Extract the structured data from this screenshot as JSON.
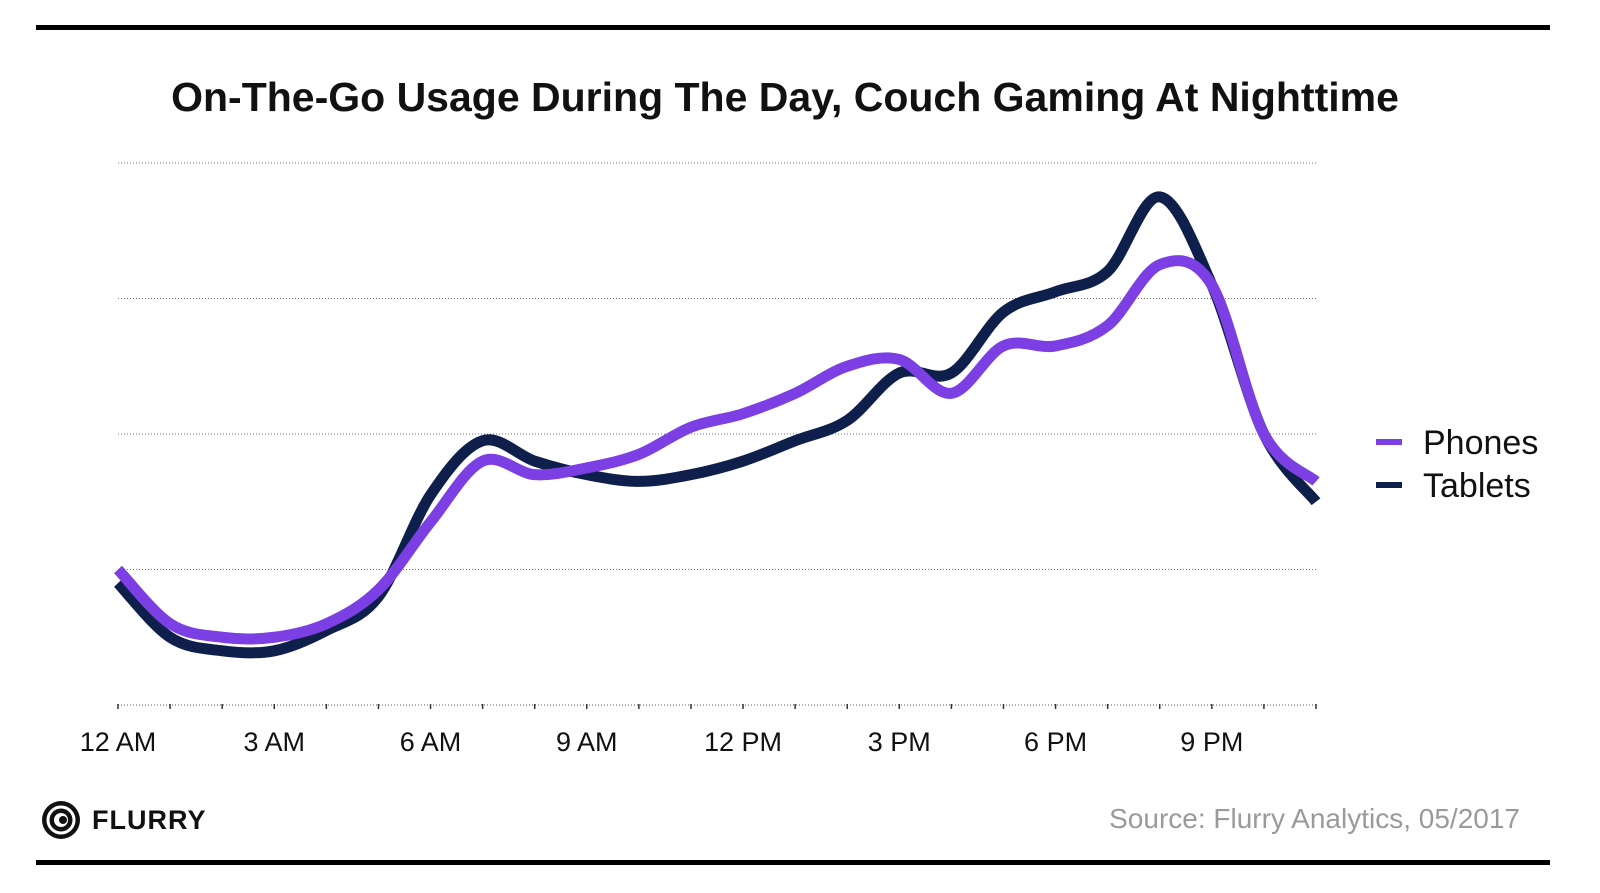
{
  "chart_data": {
    "type": "line",
    "title": "On-The-Go Usage During The Day, Couch Gaming At Nighttime",
    "xlabel": "",
    "ylabel": "",
    "x_tick_labels": [
      "12 AM",
      "3 AM",
      "6 AM",
      "9 AM",
      "12 PM",
      "3 PM",
      "6 PM",
      "9 PM"
    ],
    "x": [
      0,
      1,
      2,
      3,
      4,
      5,
      6,
      7,
      8,
      9,
      10,
      11,
      12,
      13,
      14,
      15,
      16,
      17,
      18,
      19,
      20,
      21,
      22,
      23
    ],
    "ylim": [
      0,
      4
    ],
    "grid": true,
    "legend_position": "right",
    "series": [
      {
        "name": "Phones",
        "color": "#7b3fe4",
        "values": [
          1.0,
          0.6,
          0.5,
          0.5,
          0.6,
          0.85,
          1.35,
          1.8,
          1.7,
          1.75,
          1.85,
          2.05,
          2.15,
          2.3,
          2.5,
          2.55,
          2.3,
          2.65,
          2.65,
          2.8,
          3.25,
          3.1,
          2.0,
          1.65
        ]
      },
      {
        "name": "Tablets",
        "color": "#0f1f4b",
        "values": [
          0.9,
          0.5,
          0.4,
          0.4,
          0.55,
          0.8,
          1.55,
          1.95,
          1.8,
          1.7,
          1.65,
          1.7,
          1.8,
          1.95,
          2.1,
          2.45,
          2.45,
          2.9,
          3.05,
          3.2,
          3.75,
          3.1,
          2.0,
          1.5
        ]
      }
    ]
  },
  "logo": {
    "text": "FLURRY"
  },
  "source_text": "Source: Flurry Analytics, 05/2017"
}
